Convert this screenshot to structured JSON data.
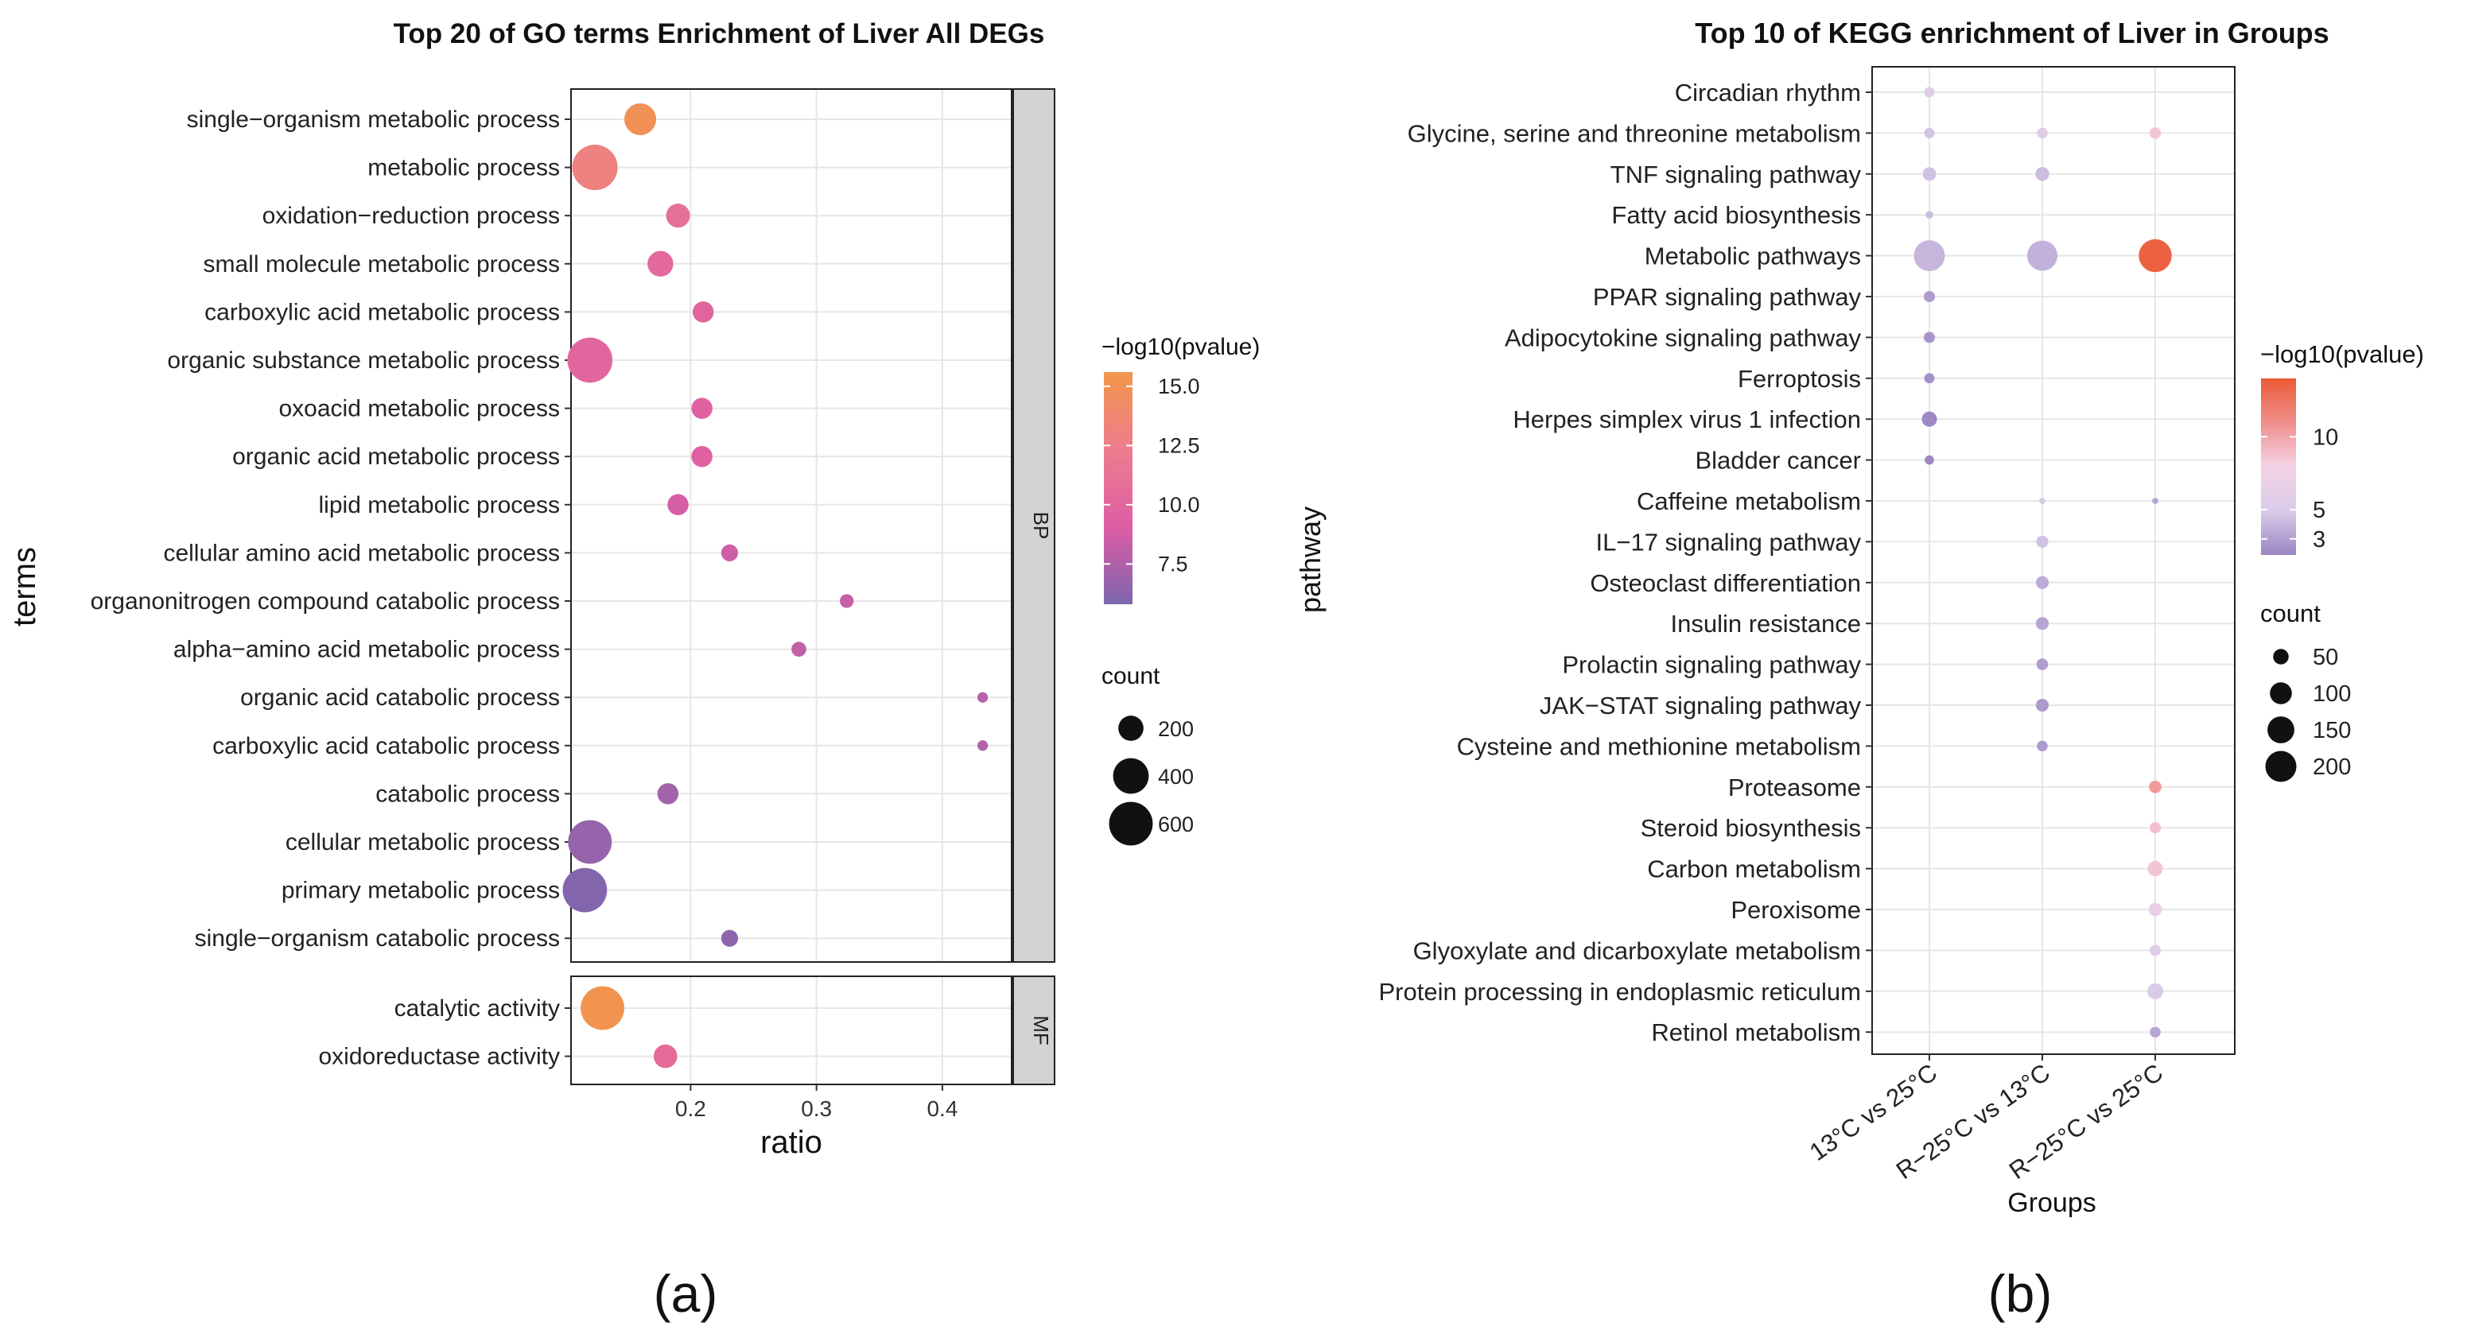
{
  "chart_data": [
    {
      "type": "scatter",
      "panel_label": "(a)",
      "title": "Top 20 of GO terms Enrichment of Liver All DEGs",
      "xlabel": "ratio",
      "ylabel": "terms",
      "xlim": [
        0.105,
        0.455
      ],
      "xticks": [
        0.2,
        0.3,
        0.4
      ],
      "xtick_labels": [
        "0.2",
        "0.3",
        "0.4"
      ],
      "grid": true,
      "color_legend": {
        "title": "−log10(pvalue)",
        "min": 5.8,
        "max": 15.6,
        "ticks": [
          15.0,
          12.5,
          10.0,
          7.5
        ],
        "tick_labels": [
          "15.0",
          "12.5",
          "10.0",
          "7.5"
        ],
        "colors": [
          "#7D66AD",
          "#DE5DA5",
          "#ED7D8E",
          "#F2964A"
        ]
      },
      "size_legend": {
        "title": "count",
        "values": [
          200,
          400,
          600
        ],
        "labels": [
          "200",
          "400",
          "600"
        ]
      },
      "facets": [
        {
          "label": "BP",
          "points": [
            {
              "term": "single−organism metabolic process",
              "ratio": 0.16,
              "log10p": 15.0,
              "count": 320
            },
            {
              "term": "metabolic process",
              "ratio": 0.124,
              "log10p": 13.0,
              "count": 650
            },
            {
              "term": "oxidation−reduction process",
              "ratio": 0.19,
              "log10p": 11.0,
              "count": 180
            },
            {
              "term": "small molecule metabolic process",
              "ratio": 0.176,
              "log10p": 10.4,
              "count": 210
            },
            {
              "term": "carboxylic acid metabolic process",
              "ratio": 0.21,
              "log10p": 9.8,
              "count": 140
            },
            {
              "term": "organic substance metabolic process",
              "ratio": 0.12,
              "log10p": 10.0,
              "count": 640
            },
            {
              "term": "oxoacid metabolic process",
              "ratio": 0.209,
              "log10p": 9.6,
              "count": 140
            },
            {
              "term": "organic acid metabolic process",
              "ratio": 0.209,
              "log10p": 9.5,
              "count": 140
            },
            {
              "term": "lipid metabolic process",
              "ratio": 0.19,
              "log10p": 8.8,
              "count": 140
            },
            {
              "term": "cellular amino acid metabolic process",
              "ratio": 0.231,
              "log10p": 8.5,
              "count": 90
            },
            {
              "term": "organonitrogen compound catabolic process",
              "ratio": 0.324,
              "log10p": 8.3,
              "count": 60
            },
            {
              "term": "alpha−amino acid metabolic process",
              "ratio": 0.286,
              "log10p": 8.1,
              "count": 70
            },
            {
              "term": "organic acid catabolic process",
              "ratio": 0.432,
              "log10p": 7.8,
              "count": 35
            },
            {
              "term": "carboxylic acid catabolic process",
              "ratio": 0.432,
              "log10p": 7.6,
              "count": 35
            },
            {
              "term": "catabolic process",
              "ratio": 0.182,
              "log10p": 7.0,
              "count": 140
            },
            {
              "term": "cellular metabolic process",
              "ratio": 0.12,
              "log10p": 6.6,
              "count": 600
            },
            {
              "term": "primary metabolic process",
              "ratio": 0.116,
              "log10p": 6.0,
              "count": 620
            },
            {
              "term": "single−organism catabolic process",
              "ratio": 0.231,
              "log10p": 6.3,
              "count": 90
            }
          ]
        },
        {
          "label": "MF",
          "points": [
            {
              "term": "catalytic activity",
              "ratio": 0.13,
              "log10p": 15.3,
              "count": 600
            },
            {
              "term": "oxidoreductase activity",
              "ratio": 0.18,
              "log10p": 10.6,
              "count": 175
            }
          ]
        }
      ]
    },
    {
      "type": "scatter",
      "panel_label": "(b)",
      "title": "Top 10 of KEGG enrichment of Liver in Groups",
      "xlabel": "Groups",
      "ylabel": "pathway",
      "groups": [
        "13°C vs 25°C",
        "R−25°C vs 13°C",
        "R−25°C vs 25°C"
      ],
      "pathways": [
        "Circadian rhythm",
        "Glycine, serine and threonine metabolism",
        "TNF signaling pathway",
        "Fatty acid biosynthesis",
        "Metabolic pathways",
        "PPAR signaling pathway",
        "Adipocytokine signaling pathway",
        "Ferroptosis",
        "Herpes simplex virus 1 infection",
        "Bladder cancer",
        "Caffeine metabolism",
        "IL−17 signaling pathway",
        "Osteoclast differentiation",
        "Insulin resistance",
        "Prolactin signaling pathway",
        "JAK−STAT signaling pathway",
        "Cysteine and methionine metabolism",
        "Proteasome",
        "Steroid biosynthesis",
        "Carbon metabolism",
        "Peroxisome",
        "Glyoxylate and dicarboxylate metabolism",
        "Protein processing in endoplasmic reticulum",
        "Retinol metabolism"
      ],
      "grid": true,
      "color_legend": {
        "title": "−log10(pvalue)",
        "min": 1.9,
        "max": 14.0,
        "ticks": [
          10,
          5,
          3
        ],
        "tick_labels": [
          "10",
          "5",
          "3"
        ],
        "colors": [
          "#9A84C2",
          "#D9CCE8",
          "#F4D2E6",
          "#EF8F8C",
          "#EB5A35"
        ]
      },
      "size_legend": {
        "title": "count",
        "values": [
          50,
          100,
          150,
          200
        ],
        "labels": [
          "50",
          "100",
          "150",
          "200"
        ]
      },
      "points": [
        {
          "pathway": "Circadian rhythm",
          "group": "13°C vs 25°C",
          "log10p": 5.5,
          "count": 22
        },
        {
          "pathway": "Glycine, serine and threonine metabolism",
          "group": "13°C vs 25°C",
          "log10p": 4.6,
          "count": 22
        },
        {
          "pathway": "Glycine, serine and threonine metabolism",
          "group": "R−25°C vs 13°C",
          "log10p": 5.6,
          "count": 24
        },
        {
          "pathway": "Glycine, serine and threonine metabolism",
          "group": "R−25°C vs 25°C",
          "log10p": 8.5,
          "count": 28
        },
        {
          "pathway": "TNF signaling pathway",
          "group": "13°C vs 25°C",
          "log10p": 4.5,
          "count": 38
        },
        {
          "pathway": "TNF signaling pathway",
          "group": "R−25°C vs 13°C",
          "log10p": 4.3,
          "count": 40
        },
        {
          "pathway": "Fatty acid biosynthesis",
          "group": "13°C vs 25°C",
          "log10p": 4.3,
          "count": 12
        },
        {
          "pathway": "Metabolic pathways",
          "group": "13°C vs 25°C",
          "log10p": 4.0,
          "count": 200
        },
        {
          "pathway": "Metabolic pathways",
          "group": "R−25°C vs 13°C",
          "log10p": 3.8,
          "count": 190
        },
        {
          "pathway": "Metabolic pathways",
          "group": "R−25°C vs 25°C",
          "log10p": 13.6,
          "count": 225
        },
        {
          "pathway": "PPAR signaling pathway",
          "group": "13°C vs 25°C",
          "log10p": 2.9,
          "count": 26
        },
        {
          "pathway": "Adipocytokine signaling pathway",
          "group": "13°C vs 25°C",
          "log10p": 2.6,
          "count": 26
        },
        {
          "pathway": "Ferroptosis",
          "group": "13°C vs 25°C",
          "log10p": 2.4,
          "count": 22
        },
        {
          "pathway": "Herpes simplex virus 1 infection",
          "group": "13°C vs 25°C",
          "log10p": 2.1,
          "count": 48
        },
        {
          "pathway": "Bladder cancer",
          "group": "13°C vs 25°C",
          "log10p": 2.0,
          "count": 18
        },
        {
          "pathway": "Caffeine metabolism",
          "group": "R−25°C vs 13°C",
          "log10p": 4.8,
          "count": 8
        },
        {
          "pathway": "Caffeine metabolism",
          "group": "R−25°C vs 25°C",
          "log10p": 3.3,
          "count": 8
        },
        {
          "pathway": "IL−17 signaling pathway",
          "group": "R−25°C vs 13°C",
          "log10p": 4.5,
          "count": 30
        },
        {
          "pathway": "Osteoclast differentiation",
          "group": "R−25°C vs 13°C",
          "log10p": 3.6,
          "count": 34
        },
        {
          "pathway": "Insulin resistance",
          "group": "R−25°C vs 13°C",
          "log10p": 3.3,
          "count": 34
        },
        {
          "pathway": "Prolactin signaling pathway",
          "group": "R−25°C vs 13°C",
          "log10p": 3.0,
          "count": 28
        },
        {
          "pathway": "JAK−STAT signaling pathway",
          "group": "R−25°C vs 13°C",
          "log10p": 2.8,
          "count": 34
        },
        {
          "pathway": "Cysteine and methionine metabolism",
          "group": "R−25°C vs 13°C",
          "log10p": 2.8,
          "count": 24
        },
        {
          "pathway": "Proteasome",
          "group": "R−25°C vs 25°C",
          "log10p": 10.5,
          "count": 32
        },
        {
          "pathway": "Steroid biosynthesis",
          "group": "R−25°C vs 25°C",
          "log10p": 8.8,
          "count": 26
        },
        {
          "pathway": "Carbon metabolism",
          "group": "R−25°C vs 25°C",
          "log10p": 8.6,
          "count": 48
        },
        {
          "pathway": "Peroxisome",
          "group": "R−25°C vs 25°C",
          "log10p": 6.6,
          "count": 36
        },
        {
          "pathway": "Glyoxylate and dicarboxylate metabolism",
          "group": "R−25°C vs 25°C",
          "log10p": 5.6,
          "count": 26
        },
        {
          "pathway": "Protein processing in endoplasmic reticulum",
          "group": "R−25°C vs 25°C",
          "log10p": 4.9,
          "count": 52
        },
        {
          "pathway": "Retinol metabolism",
          "group": "R−25°C vs 25°C",
          "log10p": 3.3,
          "count": 24
        }
      ]
    }
  ]
}
